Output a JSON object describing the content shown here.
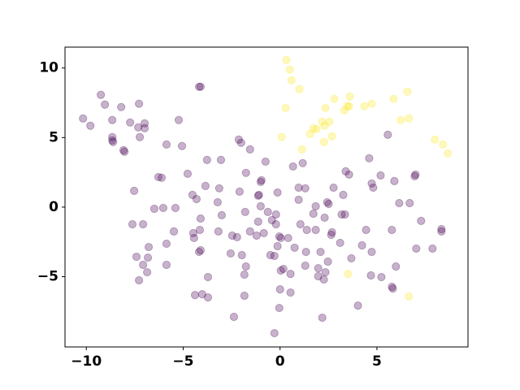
{
  "chart_data": {
    "type": "scatter",
    "alpha": 0.3,
    "xlim": [
      -11.1,
      9.7
    ],
    "ylim": [
      -10.05,
      11.5
    ],
    "xticks": [
      {
        "value": -10,
        "label": "−10"
      },
      {
        "value": -5,
        "label": "−5"
      },
      0,
      5
    ],
    "yticks": [
      {
        "value": -5,
        "label": "−5"
      },
      0,
      5,
      10
    ],
    "series": [
      {
        "color": "#440154",
        "x": [
          -10.17,
          -9.79,
          -9.25,
          -9.04,
          -8.2,
          -7.28,
          -8.66,
          -8.66,
          -8.66,
          -8.62,
          -8.08,
          -8.03,
          -7.74,
          -7.32,
          -6.99,
          -6.99,
          -7.24,
          -5.23,
          -4.18,
          -4.1,
          -5.86,
          -5.06,
          -4.77,
          -3.77,
          -3.05,
          -2.13,
          -2.01,
          -1.55,
          -6.28,
          -6.11,
          -7.53,
          -6.03,
          -5.4,
          -4.52,
          -4.31,
          -3.85,
          -3.14,
          -3.22,
          -3.01,
          -4.1,
          -4.14,
          -4.48,
          -4.44,
          -4.18,
          -4.1,
          -3.72,
          -4.39,
          -4.02,
          -3.72,
          -2.38,
          -5.48,
          -6.78,
          -7.41,
          -6.82,
          -5.86,
          -7.07,
          -6.86,
          -7.28,
          -7.62,
          -7.07,
          -6.49,
          -5.86,
          -3.18,
          -2.47,
          -2.22,
          -2.55,
          -1.97,
          -1.76,
          -1.84,
          -1.84,
          -1.21,
          -1.13,
          -1.0,
          -1.13,
          -1.0,
          -0.96,
          -1.09,
          -0.75,
          -1.76,
          -2.09,
          -1.8,
          -1.55,
          -0.63,
          -0.42,
          -0.84,
          -0.21,
          -0.13,
          -0.21,
          -0.04,
          0.04,
          0.42,
          -0.13,
          -0.5,
          -0.29,
          0.17,
          0.04,
          0.54,
          0.75,
          1.34,
          1.05,
          1.38,
          0.96,
          0.96,
          1.3,
          1.17,
          0.67,
          1.84,
          1.84,
          1.72,
          2.3,
          2.51,
          2.43,
          2.68,
          2.64,
          3.18,
          3.35,
          3.26,
          2.76,
          3.39,
          3.56,
          2.47,
          2.09,
          1.97,
          2.34,
          2.26,
          1.3,
          1.97,
          0.0,
          -0.04,
          -0.29,
          0.54,
          2.18,
          3.1,
          3.68,
          4.02,
          4.23,
          4.44,
          4.73,
          4.69,
          5.23,
          5.77,
          5.77,
          6.15,
          5.9,
          5.19,
          4.73,
          4.81,
          4.6,
          5.56,
          6.69,
          6.99,
          6.95,
          7.28,
          7.03,
          5.98,
          5.82,
          7.87,
          8.33,
          8.33
        ],
        "y": [
          6.37,
          5.85,
          8.07,
          7.37,
          7.19,
          7.43,
          6.26,
          5.03,
          4.8,
          4.68,
          4.09,
          3.98,
          6.08,
          5.73,
          6.02,
          5.67,
          5.03,
          6.26,
          8.65,
          8.65,
          4.5,
          4.39,
          2.4,
          3.39,
          3.39,
          4.85,
          4.62,
          4.15,
          2.16,
          2.11,
          1.17,
          -0.06,
          -0.06,
          0.88,
          0.58,
          1.52,
          1.35,
          0.35,
          -0.58,
          -0.82,
          -1.64,
          -1.87,
          -2.22,
          -3.22,
          -3.1,
          -5.03,
          -6.32,
          -6.26,
          -6.49,
          -7.89,
          -1.75,
          -2.87,
          -3.57,
          -3.63,
          -4.15,
          -4.15,
          -4.68,
          -5.26,
          -1.23,
          -1.23,
          -0.12,
          -2.63,
          -1.75,
          -2.05,
          -2.16,
          -3.33,
          -3.45,
          -4.27,
          -4.85,
          -6.37,
          -2.05,
          -1.05,
          0.06,
          0.82,
          1.81,
          1.93,
          0.88,
          3.27,
          2.46,
          1.11,
          -0.35,
          -1.75,
          -0.35,
          -0.94,
          -1.87,
          -1.23,
          1.05,
          -0.53,
          -2.11,
          -2.22,
          -2.22,
          -2.81,
          -3.45,
          -3.51,
          -4.44,
          -4.56,
          -4.8,
          -2.92,
          -3.22,
          -1.23,
          -1.64,
          0.53,
          1.4,
          1.35,
          3.16,
          2.92,
          0.06,
          -1.64,
          -0.47,
          -0.76,
          0.23,
          0.35,
          -1.81,
          -1.99,
          -0.53,
          -0.53,
          0.88,
          1.4,
          2.57,
          2.34,
          -3.92,
          -3.22,
          -4.97,
          -4.68,
          -5.2,
          -4.21,
          -4.39,
          -5.91,
          -7.25,
          -9.06,
          -6.14,
          -7.95,
          -2.57,
          -3.68,
          -7.08,
          -2.75,
          -1.64,
          -3.22,
          -4.91,
          -5.03,
          -5.73,
          -1.64,
          0.29,
          1.87,
          2.28,
          1.7,
          1.4,
          3.51,
          5.2,
          0.29,
          2.34,
          2.22,
          -0.99,
          -2.98,
          -4.27,
          -5.85,
          -2.98,
          -1.58,
          -1.75
        ]
      },
      {
        "color": "#fde725",
        "x": [
          0.33,
          0.5,
          0.59,
          1.0,
          0.29,
          0.08,
          1.13,
          1.55,
          1.72,
          1.88,
          2.18,
          2.3,
          2.55,
          2.68,
          2.34,
          2.8,
          3.31,
          3.47,
          3.56,
          3.6,
          4.35,
          4.73,
          5.86,
          6.23,
          6.65,
          6.57,
          7.99,
          8.41,
          8.66,
          2.26,
          3.51,
          6.65
        ],
        "y": [
          10.58,
          9.88,
          9.12,
          8.48,
          7.13,
          5.03,
          4.15,
          5.26,
          5.67,
          5.61,
          6.14,
          5.85,
          6.14,
          5.09,
          7.13,
          7.78,
          6.96,
          7.25,
          7.25,
          7.95,
          7.25,
          7.43,
          7.78,
          6.26,
          6.37,
          8.3,
          4.85,
          4.5,
          3.86,
          4.68,
          -4.8,
          -6.43
        ]
      }
    ]
  }
}
